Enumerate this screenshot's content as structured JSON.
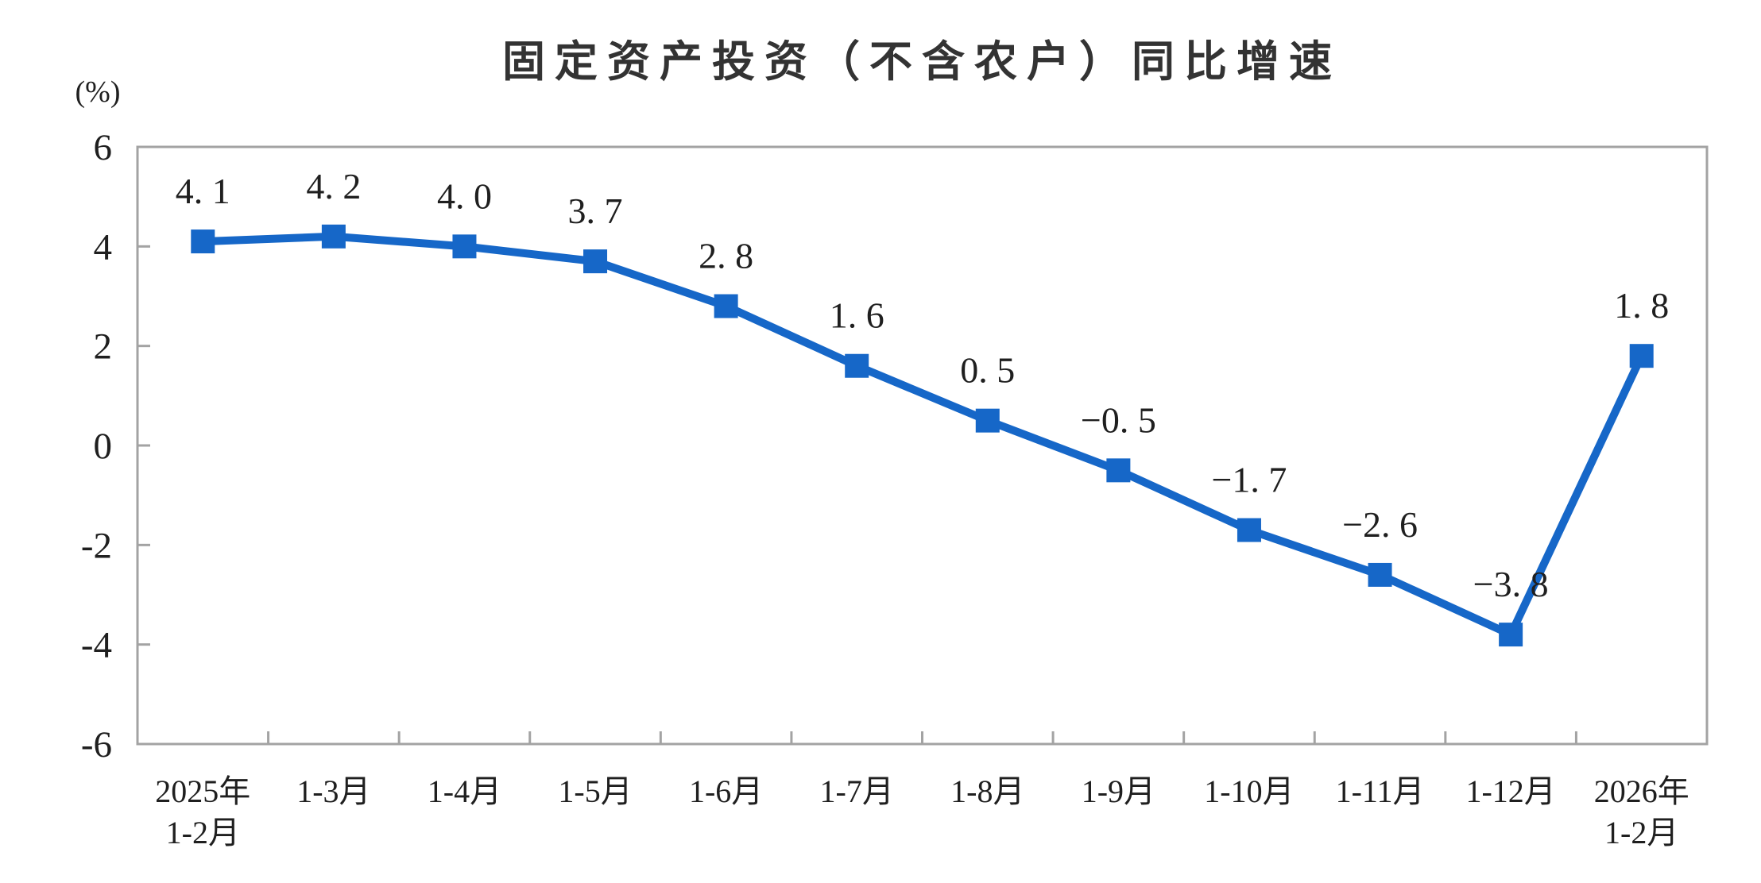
{
  "chart_data": {
    "type": "line",
    "title": "固定资产投资（不含农户）同比增速",
    "ylabel": "(%)",
    "xlabel": "",
    "categories": [
      [
        "2025年",
        "1-2月"
      ],
      [
        "1-3月"
      ],
      [
        "1-4月"
      ],
      [
        "1-5月"
      ],
      [
        "1-6月"
      ],
      [
        "1-7月"
      ],
      [
        "1-8月"
      ],
      [
        "1-9月"
      ],
      [
        "1-10月"
      ],
      [
        "1-11月"
      ],
      [
        "1-12月"
      ],
      [
        "2026年",
        "1-2月"
      ]
    ],
    "series": [
      {
        "name": "固定资产投资（不含农户）同比增速",
        "values": [
          4.1,
          4.2,
          4.0,
          3.7,
          2.8,
          1.6,
          0.5,
          -0.5,
          -1.7,
          -2.6,
          -3.8,
          1.8
        ],
        "point_labels": [
          "4. 1",
          "4. 2",
          "4. 0",
          "3. 7",
          "2. 8",
          "1. 6",
          "0. 5",
          "−0. 5",
          "−1. 7",
          "−2. 6",
          "−3. 8",
          "1. 8"
        ]
      }
    ],
    "yticks": [
      6,
      4,
      2,
      0,
      -2,
      -4,
      -6
    ],
    "ylim": [
      -6,
      6
    ],
    "grid": false,
    "legend_position": "none",
    "marker": "square",
    "colors": {
      "line": "#1667C8",
      "marker": "#1667C8",
      "axis": "#A3A3A3",
      "tick_label": "#1f1f1f",
      "data_label": "#1f1f1f",
      "title": "#333333",
      "background": "#ffffff"
    }
  }
}
